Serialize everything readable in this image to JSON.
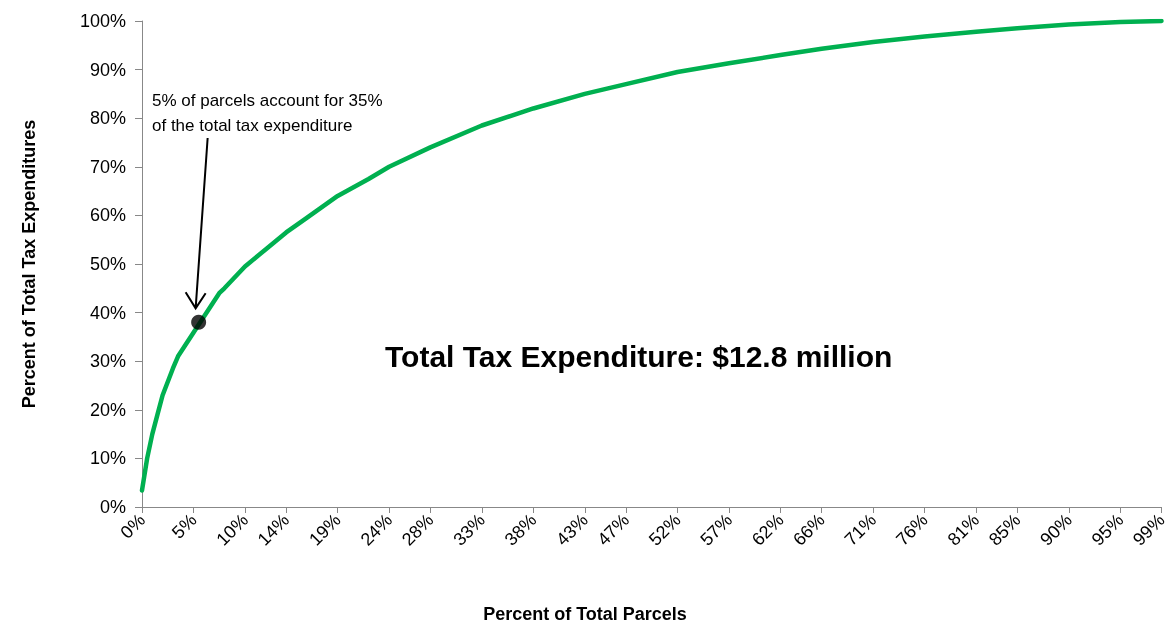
{
  "chart_data": {
    "type": "line",
    "xlabel": "Percent of Total Parcels",
    "ylabel": "Percent of Total Tax Expenditures",
    "x": [
      0,
      0.5,
      1,
      1.5,
      2,
      3,
      3.5,
      7.5,
      8,
      10,
      12,
      14,
      16,
      19,
      22,
      24,
      28,
      33,
      38,
      43,
      47,
      52,
      57,
      62,
      66,
      71,
      76,
      81,
      85,
      90,
      95,
      99
    ],
    "series": [
      {
        "color": "#00b050",
        "values": [
          3.4,
          10,
          15,
          19,
          23,
          28.5,
          31,
          44,
          45,
          49.5,
          53,
          56.5,
          59.5,
          64,
          67.5,
          70,
          74,
          78.5,
          82,
          85,
          87,
          89.5,
          91.3,
          93,
          94.3,
          95.7,
          96.8,
          97.8,
          98.5,
          99.3,
          99.8,
          100
        ]
      },
      {
        "type": "scatter",
        "color": "#000000",
        "x": [
          5.5
        ],
        "values": [
          38
        ],
        "marker": "circle"
      }
    ],
    "xlim": [
      0,
      99
    ],
    "xticks": [
      {
        "value": 0,
        "label": "0%"
      },
      {
        "value": 5,
        "label": "5%"
      },
      {
        "value": 10,
        "label": "10%"
      },
      {
        "value": 14,
        "label": "14%"
      },
      {
        "value": 19,
        "label": "19%"
      },
      {
        "value": 24,
        "label": "24%"
      },
      {
        "value": 28,
        "label": "28%"
      },
      {
        "value": 33,
        "label": "33%"
      },
      {
        "value": 38,
        "label": "38%"
      },
      {
        "value": 43,
        "label": "43%"
      },
      {
        "value": 47,
        "label": "47%"
      },
      {
        "value": 52,
        "label": "52%"
      },
      {
        "value": 57,
        "label": "57%"
      },
      {
        "value": 62,
        "label": "62%"
      },
      {
        "value": 66,
        "label": "66%"
      },
      {
        "value": 71,
        "label": "71%"
      },
      {
        "value": 76,
        "label": "76%"
      },
      {
        "value": 81,
        "label": "81%"
      },
      {
        "value": 85,
        "label": "85%"
      },
      {
        "value": 90,
        "label": "90%"
      },
      {
        "value": 95,
        "label": "95%"
      },
      {
        "value": 99,
        "label": "99%"
      }
    ],
    "ylim": [
      0,
      100
    ],
    "yticks": [
      {
        "value": 0,
        "label": "0%"
      },
      {
        "value": 10,
        "label": "10%"
      },
      {
        "value": 20,
        "label": "20%"
      },
      {
        "value": 30,
        "label": "30%"
      },
      {
        "value": 40,
        "label": "40%"
      },
      {
        "value": 50,
        "label": "50%"
      },
      {
        "value": 60,
        "label": "60%"
      },
      {
        "value": 70,
        "label": "70%"
      },
      {
        "value": 80,
        "label": "80%"
      },
      {
        "value": 90,
        "label": "90%"
      },
      {
        "value": 100,
        "label": "100%"
      }
    ],
    "annotations": [
      "5% of parcels account for 35%\nof the total tax expenditure",
      "Total Tax Expenditure: $12.8 million"
    ],
    "grid": false,
    "marker": "none",
    "line_style": "solid"
  }
}
